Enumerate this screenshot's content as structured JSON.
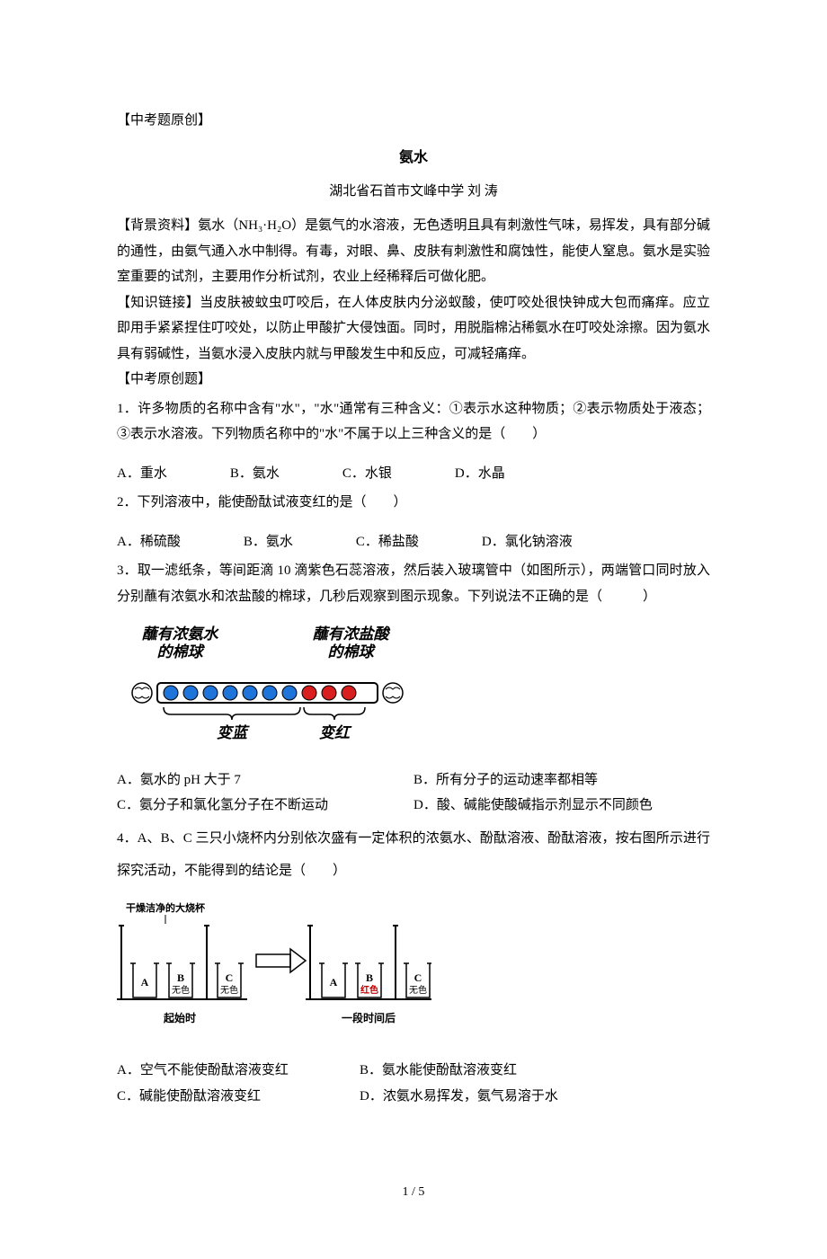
{
  "colors": {
    "text": "#000000",
    "bg": "#ffffff",
    "tube_dot_blue": "#1e74d8",
    "tube_dot_red": "#d81e1e",
    "tube_outline": "#000000",
    "cup_outline": "#000000",
    "cup_label_red": "#c00000"
  },
  "header": {
    "tag": "【中考题原创】"
  },
  "title": "氨水",
  "author": "湖北省石首市文峰中学 刘 涛",
  "background": {
    "label": "【背景资料】",
    "text": "氨水（NH₃·H₂O）是氨气的水溶液，无色透明且具有刺激性气味，易挥发，具有部分碱的通性，由氨气通入水中制得。有毒，对眼、鼻、皮肤有刺激性和腐蚀性，能使人窒息。氨水是实验室重要的试剂，主要用作分析试剂，农业上经稀释后可做化肥。"
  },
  "knowledge": {
    "label": "【知识链接】",
    "text": "当皮肤被蚊虫叮咬后，在人体皮肤内分泌蚁酸，使叮咬处很快钟成大包而痛痒。应立即用手紧紧捏住叮咬处，以防止甲酸扩大侵蚀面。同时，用脱脂棉沾稀氨水在叮咬处涂擦。因为氨水具有弱碱性，当氨水浸入皮肤内就与甲酸发生中和反应，可减轻痛痒。"
  },
  "section_label": "【中考原创题】",
  "q1": {
    "stem": "1．许多物质的名称中含有\"水\"，\"水\"通常有三种含义：①表示水这种物质；②表示物质处于液态；③表示水溶液。下列物质名称中的\"水\"不属于以上三种含义的是（　　）",
    "A": "A．重水",
    "B": "B．氨水",
    "C": "C．水银",
    "D": "D．水晶"
  },
  "q2": {
    "stem": "2．下列溶液中，能使酚酞试液变红的是（　　）",
    "A": "A．稀硫酸",
    "B": "B．氨水",
    "C": "C．稀盐酸",
    "D": "D．氯化钠溶液"
  },
  "q3": {
    "stem": "3．取一滤纸条，等间距滴 10 滴紫色石蕊溶液，然后装入玻璃管中（如图所示），两端管口同时放入分别蘸有浓氨水和浓盐酸的棉球，几秒后观察到图示现象。下列说法不正确的是（　　　）",
    "fig": {
      "left_label_l1": "蘸有浓氨水",
      "left_label_l2": "的棉球",
      "right_label_l1": "蘸有浓盐酸",
      "right_label_l2": "的棉球",
      "bottom_left": "变蓝",
      "bottom_right": "变红",
      "n_blue": 7,
      "n_red": 3
    },
    "A": "A．氨水的 pH 大于 7",
    "B": "B．所有分子的运动速率都相等",
    "C": "C．氨分子和氯化氢分子在不断运动",
    "D": "D．酸、碱能使酸碱指示剂显示不同颜色"
  },
  "q4": {
    "stem": "4．A、B、C 三只小烧杯内分别依次盛有一定体积的浓氨水、酚酞溶液、酚酞溶液，按右图所示进行探究活动，不能得到的结论是（　　）",
    "fig": {
      "big_label": "干燥洁净的大烧杯",
      "cupA": "A",
      "cupB_start": "B\n无色",
      "cupB_end": "B\n红色",
      "cupC": "C\n无色",
      "caption_left": "起始时",
      "caption_right": "一段时间后"
    },
    "A": "A．空气不能使酚酞溶液变红",
    "B": "B．氨水能使酚酞溶液变红",
    "C": "C．碱能使酚酞溶液变红",
    "D": "D．浓氨水易挥发，氨气易溶于水"
  },
  "footer": "1 / 5"
}
